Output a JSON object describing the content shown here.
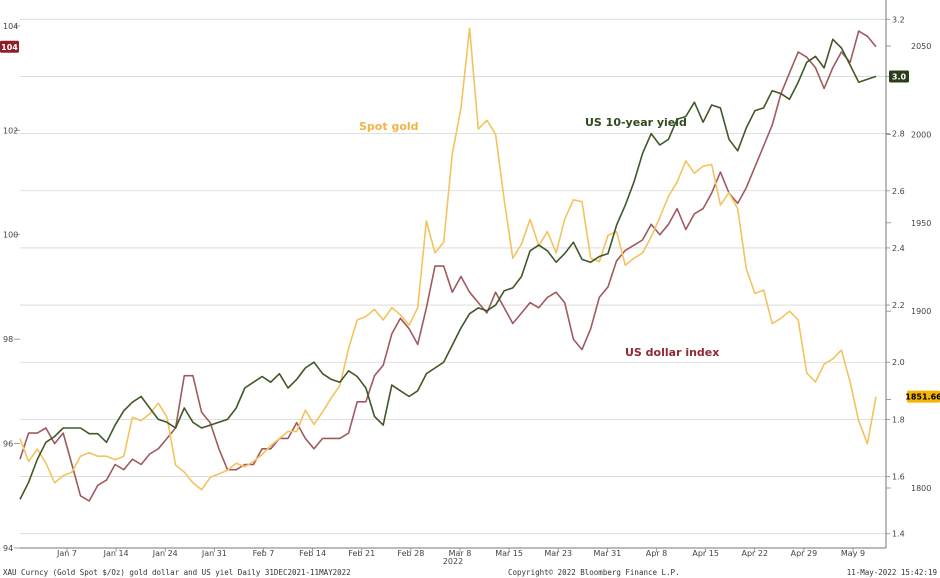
{
  "chart_data": {
    "type": "line",
    "footer_left": "XAU Curncy (Gold Spot  $/Oz) gold dollar and US yiel  Daily 31DEC2021-11MAY2022",
    "footer_center": "Copyright© 2022 Bloomberg Finance L.P.",
    "footer_right": "11-May-2022 15:42:19",
    "x_ticks": [
      "Jan 7",
      "Jan 14",
      "Jan 24",
      "Jan 31",
      "Feb 7",
      "Feb 14",
      "Feb 21",
      "Feb 28",
      "Mar 8",
      "Mar 15",
      "Mar 23",
      "Mar 31",
      "Apr 8",
      "Apr 15",
      "Apr 22",
      "Apr 29",
      "May 9"
    ],
    "x_year": "2022",
    "axes": {
      "left": {
        "min": 94,
        "max": 104.4,
        "ticks": [
          "94",
          "96",
          "98",
          "100",
          "102",
          "104"
        ]
      },
      "gold": {
        "min": 1780,
        "max": 2080,
        "ticks": [
          "1800",
          "1850",
          "1900",
          "1950",
          "2000",
          "2050"
        ]
      },
      "yield": {
        "min": 1.35,
        "max": 3.25,
        "ticks": [
          "1.4",
          "1.6",
          "1.8",
          "2.0",
          "2.2",
          "2.4",
          "2.6",
          "2.8",
          "3.0",
          "3.2"
        ]
      }
    },
    "grid": true,
    "series": [
      {
        "name": "US dollar index",
        "color": "#a05a5e",
        "axis": "left",
        "badge": "104",
        "badge_color": "#8e1f2a",
        "values": [
          95.7,
          96.2,
          96.2,
          96.3,
          96.0,
          96.2,
          95.6,
          95.0,
          94.9,
          95.2,
          95.3,
          95.6,
          95.5,
          95.7,
          95.6,
          95.8,
          95.9,
          96.1,
          96.3,
          97.3,
          97.3,
          96.6,
          96.4,
          95.9,
          95.5,
          95.5,
          95.6,
          95.6,
          95.9,
          95.9,
          96.1,
          96.1,
          96.4,
          96.1,
          95.9,
          96.1,
          96.1,
          96.1,
          96.2,
          96.8,
          96.8,
          97.3,
          97.5,
          98.1,
          98.4,
          98.2,
          97.9,
          98.6,
          99.4,
          99.4,
          98.9,
          99.2,
          98.9,
          98.7,
          98.5,
          98.9,
          98.6,
          98.3,
          98.5,
          98.7,
          98.6,
          98.8,
          98.9,
          98.7,
          98.0,
          97.8,
          98.2,
          98.8,
          99.0,
          99.5,
          99.7,
          99.8,
          99.9,
          100.2,
          100.0,
          100.2,
          100.5,
          100.1,
          100.4,
          100.5,
          100.8,
          101.2,
          100.8,
          100.6,
          100.9,
          101.3,
          101.7,
          102.1,
          102.7,
          103.1,
          103.5,
          103.4,
          103.2,
          102.8,
          103.2,
          103.5,
          103.3,
          103.9,
          103.8,
          103.6
        ],
        "label": "US dollar index"
      },
      {
        "name": "Spot gold",
        "color": "#f3c35f",
        "axis": "gold",
        "badge": "1851.66",
        "badge_color": "#f4b400",
        "values": [
          1828,
          1815,
          1822,
          1814,
          1803,
          1807,
          1809,
          1818,
          1820,
          1818,
          1818,
          1816,
          1818,
          1840,
          1838,
          1842,
          1848,
          1840,
          1813,
          1809,
          1803,
          1799,
          1806,
          1808,
          1810,
          1814,
          1812,
          1815,
          1819,
          1824,
          1828,
          1832,
          1832,
          1844,
          1836,
          1843,
          1851,
          1858,
          1879,
          1895,
          1897,
          1901,
          1895,
          1902,
          1898,
          1892,
          1902,
          1951,
          1933,
          1939,
          1989,
          2015,
          2060,
          2003,
          2008,
          2000,
          1963,
          1930,
          1938,
          1952,
          1937,
          1945,
          1933,
          1952,
          1963,
          1962,
          1930,
          1928,
          1943,
          1945,
          1926,
          1930,
          1933,
          1942,
          1953,
          1965,
          1973,
          1985,
          1978,
          1982,
          1983,
          1960,
          1967,
          1958,
          1924,
          1910,
          1912,
          1893,
          1896,
          1900,
          1895,
          1865,
          1860,
          1870,
          1873,
          1878,
          1860,
          1838,
          1825,
          1851.66
        ],
        "label": "Spot gold"
      },
      {
        "name": "US 10-year yield",
        "color": "#3f5927",
        "axis": "yield",
        "badge": "3.0",
        "badge_color": "#2c3d1c",
        "values": [
          1.52,
          1.58,
          1.66,
          1.72,
          1.74,
          1.77,
          1.77,
          1.77,
          1.75,
          1.75,
          1.72,
          1.78,
          1.83,
          1.86,
          1.88,
          1.84,
          1.8,
          1.79,
          1.77,
          1.84,
          1.79,
          1.77,
          1.78,
          1.79,
          1.8,
          1.84,
          1.91,
          1.93,
          1.95,
          1.93,
          1.96,
          1.91,
          1.94,
          1.98,
          2.0,
          1.96,
          1.94,
          1.93,
          1.97,
          1.95,
          1.91,
          1.81,
          1.78,
          1.92,
          1.9,
          1.88,
          1.9,
          1.96,
          1.98,
          2.0,
          2.06,
          2.12,
          2.17,
          2.19,
          2.18,
          2.2,
          2.25,
          2.26,
          2.3,
          2.39,
          2.41,
          2.39,
          2.35,
          2.38,
          2.42,
          2.36,
          2.35,
          2.37,
          2.38,
          2.48,
          2.55,
          2.63,
          2.73,
          2.8,
          2.76,
          2.78,
          2.85,
          2.86,
          2.91,
          2.84,
          2.9,
          2.89,
          2.78,
          2.74,
          2.82,
          2.88,
          2.89,
          2.95,
          2.94,
          2.92,
          2.98,
          3.05,
          3.07,
          3.03,
          3.13,
          3.1,
          3.04,
          2.98,
          2.99,
          3.0
        ],
        "label": "US 10-year yield"
      }
    ]
  }
}
